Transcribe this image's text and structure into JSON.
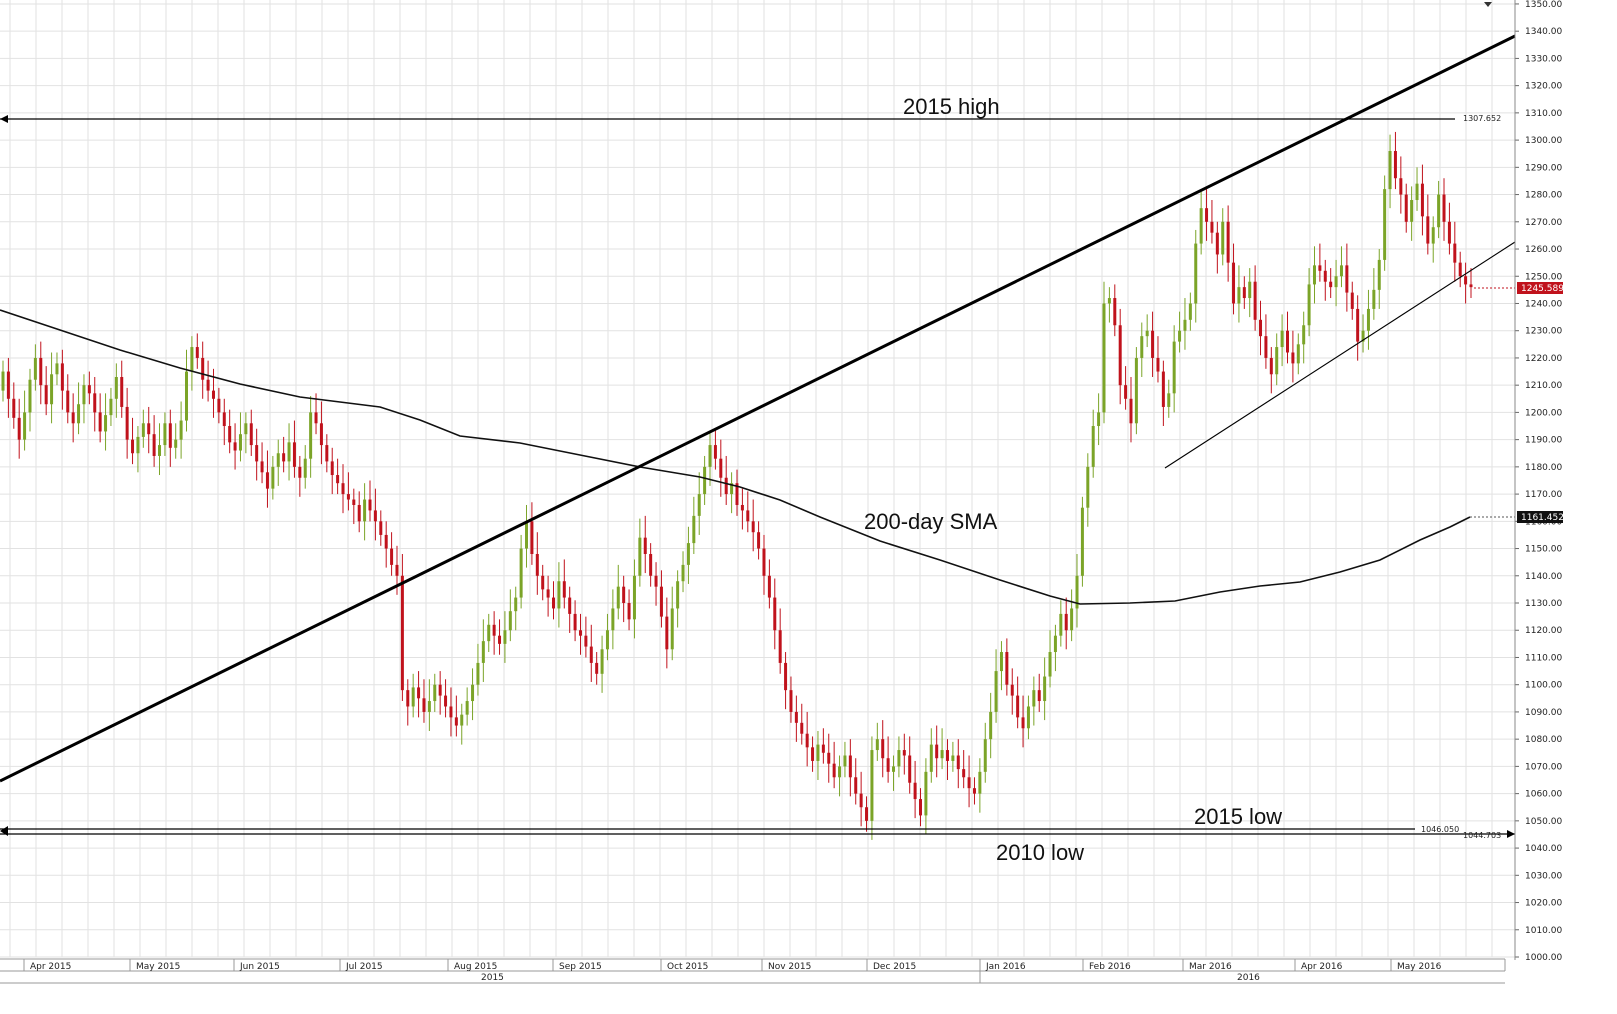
{
  "chart_data": {
    "type": "candlestick",
    "y_axis": {
      "ylim": [
        1000,
        1350
      ],
      "ticks": [
        "1000.00",
        "1010.00",
        "1020.00",
        "1030.00",
        "1040.00",
        "1050.00",
        "1060.00",
        "1070.00",
        "1080.00",
        "1090.00",
        "1100.00",
        "1110.00",
        "1120.00",
        "1130.00",
        "1140.00",
        "1150.00",
        "1160.00",
        "1170.00",
        "1180.00",
        "1190.00",
        "1200.00",
        "1210.00",
        "1220.00",
        "1230.00",
        "1240.00",
        "1250.00",
        "1260.00",
        "1270.00",
        "1280.00",
        "1290.00",
        "1300.00",
        "1310.00",
        "1320.00",
        "1330.00",
        "1340.00",
        "1350.00"
      ],
      "position": "right"
    },
    "x_axis": {
      "months": [
        "Apr 2015",
        "May 2015",
        "Jun 2015",
        "Jul 2015",
        "Aug 2015",
        "Sep 2015",
        "Oct 2015",
        "Nov 2015",
        "Dec 2015",
        "Jan 2016",
        "Feb 2016",
        "Mar 2016",
        "Apr 2016",
        "May 2016"
      ],
      "years": [
        "2015",
        "2016"
      ]
    },
    "grid": true,
    "candles_close": [
      1215,
      1205,
      1198,
      1190,
      1200,
      1212,
      1220,
      1210,
      1203,
      1214,
      1218,
      1208,
      1200,
      1196,
      1203,
      1210,
      1207,
      1200,
      1193,
      1199,
      1205,
      1213,
      1202,
      1190,
      1185,
      1191,
      1196,
      1192,
      1184,
      1188,
      1196,
      1187,
      1190,
      1197,
      1215,
      1224,
      1220,
      1212,
      1208,
      1205,
      1200,
      1195,
      1189,
      1186,
      1192,
      1196,
      1188,
      1182,
      1178,
      1172,
      1180,
      1185,
      1182,
      1189,
      1180,
      1176,
      1183,
      1200,
      1196,
      1188,
      1182,
      1177,
      1174,
      1170,
      1168,
      1166,
      1160,
      1168,
      1164,
      1160,
      1155,
      1150,
      1144,
      1140,
      1098,
      1092,
      1099,
      1095,
      1090,
      1094,
      1100,
      1096,
      1092,
      1088,
      1085,
      1089,
      1094,
      1100,
      1108,
      1116,
      1122,
      1118,
      1115,
      1120,
      1127,
      1132,
      1150,
      1160,
      1148,
      1140,
      1135,
      1132,
      1128,
      1138,
      1132,
      1126,
      1120,
      1118,
      1114,
      1108,
      1104,
      1113,
      1120,
      1128,
      1136,
      1130,
      1124,
      1140,
      1154,
      1148,
      1140,
      1136,
      1125,
      1113,
      1128,
      1138,
      1144,
      1152,
      1162,
      1170,
      1180,
      1188,
      1183,
      1176,
      1170,
      1174,
      1166,
      1164,
      1160,
      1156,
      1150,
      1140,
      1132,
      1120,
      1108,
      1098,
      1090,
      1086,
      1082,
      1077,
      1072,
      1078,
      1075,
      1071,
      1066,
      1070,
      1074,
      1066,
      1060,
      1055,
      1050,
      1076,
      1080,
      1073,
      1068,
      1070,
      1076,
      1074,
      1064,
      1058,
      1052,
      1068,
      1078,
      1073,
      1076,
      1072,
      1074,
      1069,
      1066,
      1062,
      1060,
      1068,
      1080,
      1090,
      1105,
      1112,
      1100,
      1096,
      1088,
      1084,
      1092,
      1098,
      1094,
      1103,
      1112,
      1118,
      1126,
      1120,
      1128,
      1140,
      1165,
      1180,
      1195,
      1200,
      1240,
      1242,
      1232,
      1210,
      1205,
      1196,
      1220,
      1228,
      1230,
      1220,
      1215,
      1202,
      1207,
      1226,
      1230,
      1234,
      1240,
      1262,
      1275,
      1270,
      1266,
      1258,
      1270,
      1255,
      1240,
      1246,
      1242,
      1248,
      1234,
      1228,
      1220,
      1214,
      1224,
      1230,
      1222,
      1218,
      1225,
      1232,
      1247,
      1254,
      1252,
      1248,
      1246,
      1250,
      1254,
      1244,
      1238,
      1226,
      1230,
      1238,
      1245,
      1256,
      1282,
      1296,
      1286,
      1280,
      1270,
      1278,
      1284,
      1272,
      1262,
      1268,
      1280,
      1270,
      1262,
      1255,
      1250,
      1247,
      1246
    ],
    "series": [
      {
        "name": "200-day SMA"
      }
    ],
    "annotations": {
      "high_2015": "2015 high",
      "high_2015_value": "1307.652",
      "low_2015": "2015 low",
      "low_2015_value": "1046.050",
      "low_2010": "2010 low",
      "low_2010_value": "1044.703",
      "sma_label": "200-day SMA",
      "sma_value": "1161.452",
      "last_price": "1245.589"
    }
  },
  "colors": {
    "up": "#7ba428",
    "down": "#c0121c",
    "grid": "#e2e2e2",
    "price_tag": "#c0121c",
    "sma_tag": "#111111"
  }
}
